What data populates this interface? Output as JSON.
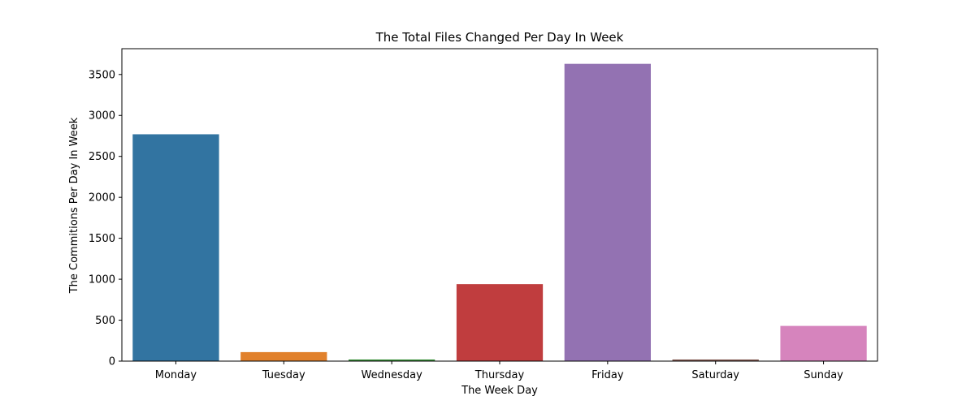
{
  "chart_data": {
    "type": "bar",
    "title": "The Total Files Changed Per Day In Week",
    "xlabel": "The Week Day",
    "ylabel": "The Commitions Per Day In Week",
    "categories": [
      "Monday",
      "Tuesday",
      "Wednesday",
      "Thursday",
      "Friday",
      "Saturday",
      "Sunday"
    ],
    "values": [
      2770,
      110,
      20,
      940,
      3630,
      20,
      430
    ],
    "colors": [
      "#3274a1",
      "#e1812c",
      "#3a923a",
      "#c03d3e",
      "#9372b2",
      "#845b53",
      "#d684bd"
    ],
    "ylim": [
      0,
      3815
    ],
    "yticks": [
      0,
      500,
      1000,
      1500,
      2000,
      2500,
      3000,
      3500
    ],
    "grid": false,
    "legend": "none"
  }
}
